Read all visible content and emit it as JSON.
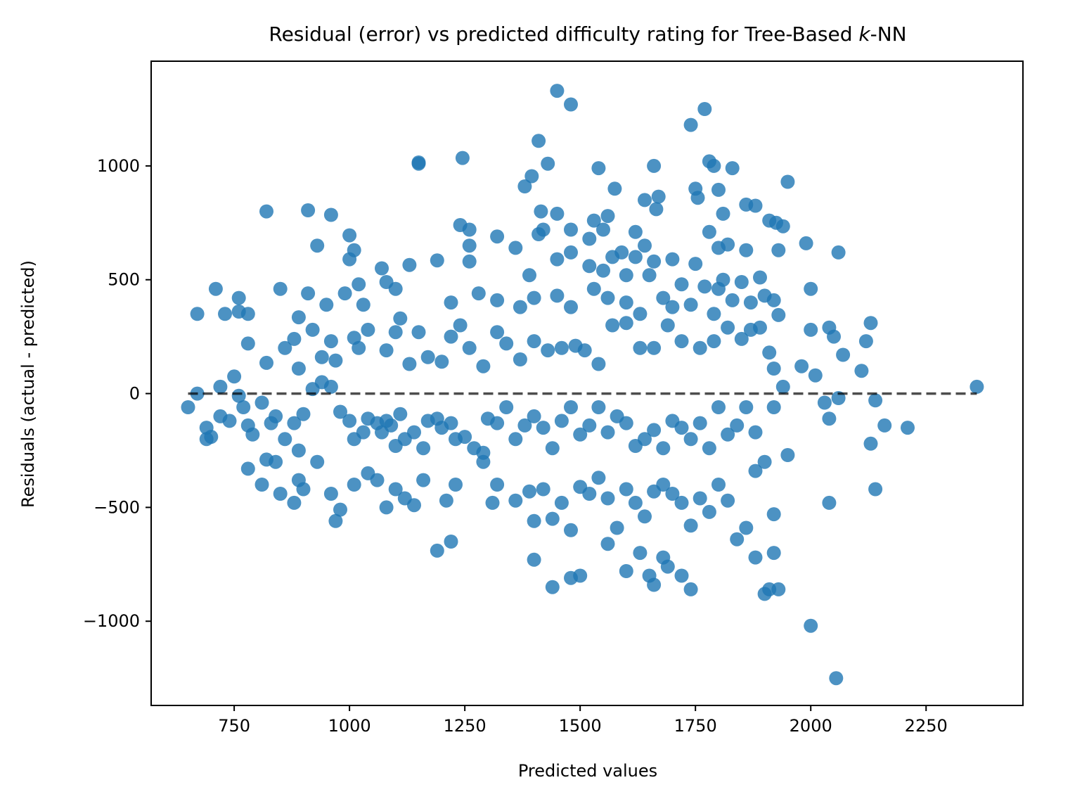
{
  "chart_data": {
    "type": "scatter",
    "title": "Residual (error) vs predicted difficulty rating for Tree-Based ",
    "title_italic": "k",
    "title_suffix": "-NN",
    "xlabel": "Predicted values",
    "ylabel": "Residuals (actual - predicted)",
    "xlim": [
      570,
      2460
    ],
    "ylim": [
      -1370,
      1460
    ],
    "xticks": [
      750,
      1000,
      1250,
      1500,
      1750,
      2000,
      2250
    ],
    "xtick_labels": [
      "750",
      "1000",
      "1250",
      "1500",
      "1750",
      "2000",
      "2250"
    ],
    "yticks": [
      -1000,
      -500,
      0,
      500,
      1000
    ],
    "ytick_labels": [
      "−1000",
      "−500",
      "0",
      "500",
      "1000"
    ],
    "grid": false,
    "legend": "none",
    "point_color": "#1f77b4",
    "reference_line": {
      "y": 0,
      "x_range": [
        650,
        2360
      ],
      "style": "dashed",
      "color": "#000000"
    },
    "points": [
      [
        1450,
        1330
      ],
      [
        1480,
        1270
      ],
      [
        1770,
        1250
      ],
      [
        1740,
        1180
      ],
      [
        1410,
        1110
      ],
      [
        1150,
        1010
      ],
      [
        1150,
        1015
      ],
      [
        1245,
        1035
      ],
      [
        1430,
        1010
      ],
      [
        1660,
        1000
      ],
      [
        1780,
        1020
      ],
      [
        1790,
        1000
      ],
      [
        1830,
        990
      ],
      [
        1540,
        990
      ],
      [
        1395,
        955
      ],
      [
        1950,
        930
      ],
      [
        1575,
        900
      ],
      [
        1750,
        900
      ],
      [
        1800,
        895
      ],
      [
        1380,
        910
      ],
      [
        1640,
        850
      ],
      [
        1670,
        865
      ],
      [
        1860,
        830
      ],
      [
        1880,
        825
      ],
      [
        1755,
        860
      ],
      [
        820,
        800
      ],
      [
        910,
        805
      ],
      [
        960,
        785
      ],
      [
        1415,
        800
      ],
      [
        1450,
        790
      ],
      [
        1665,
        810
      ],
      [
        1810,
        790
      ],
      [
        1530,
        760
      ],
      [
        1560,
        780
      ],
      [
        1550,
        720
      ],
      [
        1480,
        720
      ],
      [
        1240,
        740
      ],
      [
        1260,
        720
      ],
      [
        1910,
        760
      ],
      [
        1940,
        735
      ],
      [
        1925,
        750
      ],
      [
        1000,
        695
      ],
      [
        1320,
        690
      ],
      [
        1420,
        720
      ],
      [
        1410,
        700
      ],
      [
        1620,
        710
      ],
      [
        1780,
        710
      ],
      [
        1520,
        680
      ],
      [
        1590,
        620
      ],
      [
        1640,
        650
      ],
      [
        1930,
        630
      ],
      [
        1990,
        660
      ],
      [
        2060,
        620
      ],
      [
        930,
        650
      ],
      [
        1010,
        630
      ],
      [
        1190,
        585
      ],
      [
        1260,
        650
      ],
      [
        1260,
        580
      ],
      [
        1480,
        620
      ],
      [
        1570,
        600
      ],
      [
        1620,
        600
      ],
      [
        1660,
        580
      ],
      [
        1700,
        590
      ],
      [
        1750,
        570
      ],
      [
        1820,
        655
      ],
      [
        1860,
        630
      ],
      [
        1800,
        640
      ],
      [
        710,
        460
      ],
      [
        760,
        420
      ],
      [
        850,
        460
      ],
      [
        1000,
        590
      ],
      [
        1070,
        550
      ],
      [
        1100,
        460
      ],
      [
        1130,
        565
      ],
      [
        1360,
        640
      ],
      [
        1390,
        520
      ],
      [
        1450,
        590
      ],
      [
        1520,
        560
      ],
      [
        1550,
        540
      ],
      [
        1600,
        520
      ],
      [
        1650,
        520
      ],
      [
        1720,
        480
      ],
      [
        1770,
        470
      ],
      [
        1800,
        460
      ],
      [
        1810,
        500
      ],
      [
        1850,
        490
      ],
      [
        1890,
        510
      ],
      [
        2000,
        460
      ],
      [
        670,
        350
      ],
      [
        730,
        350
      ],
      [
        760,
        360
      ],
      [
        780,
        350
      ],
      [
        890,
        335
      ],
      [
        910,
        440
      ],
      [
        950,
        390
      ],
      [
        990,
        440
      ],
      [
        1020,
        480
      ],
      [
        1030,
        390
      ],
      [
        1080,
        490
      ],
      [
        1110,
        330
      ],
      [
        1220,
        400
      ],
      [
        1280,
        440
      ],
      [
        1320,
        410
      ],
      [
        1370,
        380
      ],
      [
        1400,
        420
      ],
      [
        1450,
        430
      ],
      [
        1480,
        380
      ],
      [
        1530,
        460
      ],
      [
        1560,
        420
      ],
      [
        1600,
        400
      ],
      [
        1630,
        350
      ],
      [
        1680,
        420
      ],
      [
        1700,
        380
      ],
      [
        1740,
        390
      ],
      [
        1790,
        350
      ],
      [
        1830,
        410
      ],
      [
        1870,
        400
      ],
      [
        1900,
        430
      ],
      [
        1920,
        410
      ],
      [
        1930,
        345
      ],
      [
        720,
        30
      ],
      [
        750,
        75
      ],
      [
        760,
        -10
      ],
      [
        780,
        220
      ],
      [
        820,
        135
      ],
      [
        860,
        200
      ],
      [
        880,
        240
      ],
      [
        890,
        110
      ],
      [
        920,
        280
      ],
      [
        940,
        160
      ],
      [
        960,
        230
      ],
      [
        970,
        145
      ],
      [
        1010,
        245
      ],
      [
        1020,
        200
      ],
      [
        1040,
        280
      ],
      [
        1080,
        190
      ],
      [
        1100,
        270
      ],
      [
        1130,
        130
      ],
      [
        1150,
        270
      ],
      [
        1170,
        160
      ],
      [
        1200,
        140
      ],
      [
        1220,
        250
      ],
      [
        1240,
        300
      ],
      [
        1260,
        200
      ],
      [
        1290,
        120
      ],
      [
        1320,
        270
      ],
      [
        1340,
        220
      ],
      [
        1370,
        150
      ],
      [
        1400,
        230
      ],
      [
        1430,
        190
      ],
      [
        1460,
        200
      ],
      [
        1490,
        210
      ],
      [
        1510,
        190
      ],
      [
        1540,
        130
      ],
      [
        1570,
        300
      ],
      [
        1600,
        310
      ],
      [
        1630,
        200
      ],
      [
        1660,
        200
      ],
      [
        1690,
        300
      ],
      [
        1720,
        230
      ],
      [
        1760,
        200
      ],
      [
        1790,
        230
      ],
      [
        1820,
        290
      ],
      [
        1850,
        240
      ],
      [
        1870,
        280
      ],
      [
        1890,
        290
      ],
      [
        1910,
        180
      ],
      [
        1920,
        110
      ],
      [
        1980,
        120
      ],
      [
        2000,
        280
      ],
      [
        2010,
        80
      ],
      [
        2040,
        290
      ],
      [
        2050,
        250
      ],
      [
        2070,
        170
      ],
      [
        2110,
        100
      ],
      [
        2120,
        230
      ],
      [
        2130,
        310
      ],
      [
        670,
        0
      ],
      [
        690,
        -150
      ],
      [
        700,
        -190
      ],
      [
        720,
        -100
      ],
      [
        740,
        -120
      ],
      [
        770,
        -60
      ],
      [
        780,
        -140
      ],
      [
        790,
        -180
      ],
      [
        810,
        -40
      ],
      [
        820,
        -290
      ],
      [
        830,
        -130
      ],
      [
        840,
        -100
      ],
      [
        860,
        -200
      ],
      [
        880,
        -130
      ],
      [
        890,
        -250
      ],
      [
        900,
        -90
      ],
      [
        920,
        20
      ],
      [
        940,
        50
      ],
      [
        960,
        30
      ],
      [
        980,
        -80
      ],
      [
        1000,
        -120
      ],
      [
        1010,
        -200
      ],
      [
        1030,
        -170
      ],
      [
        1040,
        -110
      ],
      [
        1060,
        -130
      ],
      [
        1070,
        -170
      ],
      [
        1080,
        -120
      ],
      [
        1090,
        -140
      ],
      [
        1100,
        -230
      ],
      [
        1110,
        -90
      ],
      [
        1120,
        -200
      ],
      [
        1140,
        -170
      ],
      [
        1160,
        -240
      ],
      [
        1170,
        -120
      ],
      [
        1190,
        -110
      ],
      [
        1200,
        -150
      ],
      [
        1220,
        -130
      ],
      [
        1230,
        -200
      ],
      [
        1250,
        -190
      ],
      [
        1270,
        -240
      ],
      [
        1290,
        -260
      ],
      [
        1300,
        -110
      ],
      [
        1320,
        -130
      ],
      [
        1340,
        -60
      ],
      [
        1360,
        -200
      ],
      [
        1380,
        -140
      ],
      [
        1400,
        -100
      ],
      [
        1420,
        -150
      ],
      [
        1440,
        -240
      ],
      [
        1460,
        -120
      ],
      [
        1480,
        -60
      ],
      [
        1500,
        -180
      ],
      [
        1520,
        -140
      ],
      [
        1540,
        -60
      ],
      [
        1560,
        -170
      ],
      [
        1580,
        -100
      ],
      [
        1600,
        -130
      ],
      [
        1620,
        -230
      ],
      [
        1640,
        -200
      ],
      [
        1660,
        -160
      ],
      [
        1680,
        -240
      ],
      [
        1700,
        -120
      ],
      [
        1720,
        -150
      ],
      [
        1740,
        -200
      ],
      [
        1760,
        -130
      ],
      [
        1780,
        -240
      ],
      [
        1800,
        -60
      ],
      [
        1820,
        -180
      ],
      [
        1840,
        -140
      ],
      [
        1860,
        -60
      ],
      [
        1880,
        -170
      ],
      [
        1920,
        -60
      ],
      [
        1940,
        30
      ],
      [
        2030,
        -40
      ],
      [
        2040,
        -110
      ],
      [
        2060,
        -20
      ],
      [
        2140,
        -30
      ],
      [
        2160,
        -140
      ],
      [
        2210,
        -150
      ],
      [
        2360,
        30
      ],
      [
        650,
        -60
      ],
      [
        690,
        -200
      ],
      [
        780,
        -330
      ],
      [
        810,
        -400
      ],
      [
        840,
        -300
      ],
      [
        850,
        -440
      ],
      [
        880,
        -480
      ],
      [
        890,
        -380
      ],
      [
        900,
        -420
      ],
      [
        930,
        -300
      ],
      [
        960,
        -440
      ],
      [
        970,
        -560
      ],
      [
        980,
        -510
      ],
      [
        1010,
        -400
      ],
      [
        1040,
        -350
      ],
      [
        1060,
        -380
      ],
      [
        1080,
        -500
      ],
      [
        1100,
        -420
      ],
      [
        1120,
        -460
      ],
      [
        1140,
        -490
      ],
      [
        1160,
        -380
      ],
      [
        1190,
        -690
      ],
      [
        1210,
        -470
      ],
      [
        1220,
        -650
      ],
      [
        1230,
        -400
      ],
      [
        1290,
        -300
      ],
      [
        1310,
        -480
      ],
      [
        1320,
        -400
      ],
      [
        1360,
        -470
      ],
      [
        1390,
        -430
      ],
      [
        1400,
        -560
      ],
      [
        1420,
        -420
      ],
      [
        1440,
        -550
      ],
      [
        1460,
        -480
      ],
      [
        1480,
        -600
      ],
      [
        1500,
        -410
      ],
      [
        1520,
        -440
      ],
      [
        1540,
        -370
      ],
      [
        1560,
        -460
      ],
      [
        1580,
        -590
      ],
      [
        1600,
        -420
      ],
      [
        1620,
        -480
      ],
      [
        1640,
        -540
      ],
      [
        1660,
        -430
      ],
      [
        1680,
        -400
      ],
      [
        1700,
        -440
      ],
      [
        1720,
        -480
      ],
      [
        1740,
        -580
      ],
      [
        1760,
        -460
      ],
      [
        1780,
        -520
      ],
      [
        1800,
        -400
      ],
      [
        1820,
        -470
      ],
      [
        1840,
        -640
      ],
      [
        1860,
        -590
      ],
      [
        1880,
        -340
      ],
      [
        1900,
        -300
      ],
      [
        1920,
        -530
      ],
      [
        1950,
        -270
      ],
      [
        1400,
        -730
      ],
      [
        1440,
        -850
      ],
      [
        1480,
        -810
      ],
      [
        1500,
        -800
      ],
      [
        1560,
        -660
      ],
      [
        1600,
        -780
      ],
      [
        1630,
        -700
      ],
      [
        1650,
        -800
      ],
      [
        1660,
        -840
      ],
      [
        1680,
        -720
      ],
      [
        1690,
        -760
      ],
      [
        1720,
        -800
      ],
      [
        1740,
        -860
      ],
      [
        1880,
        -720
      ],
      [
        1900,
        -880
      ],
      [
        1910,
        -860
      ],
      [
        1930,
        -860
      ],
      [
        1920,
        -700
      ],
      [
        2040,
        -480
      ],
      [
        2140,
        -420
      ],
      [
        2130,
        -220
      ],
      [
        2000,
        -1020
      ],
      [
        2055,
        -1250
      ]
    ]
  }
}
